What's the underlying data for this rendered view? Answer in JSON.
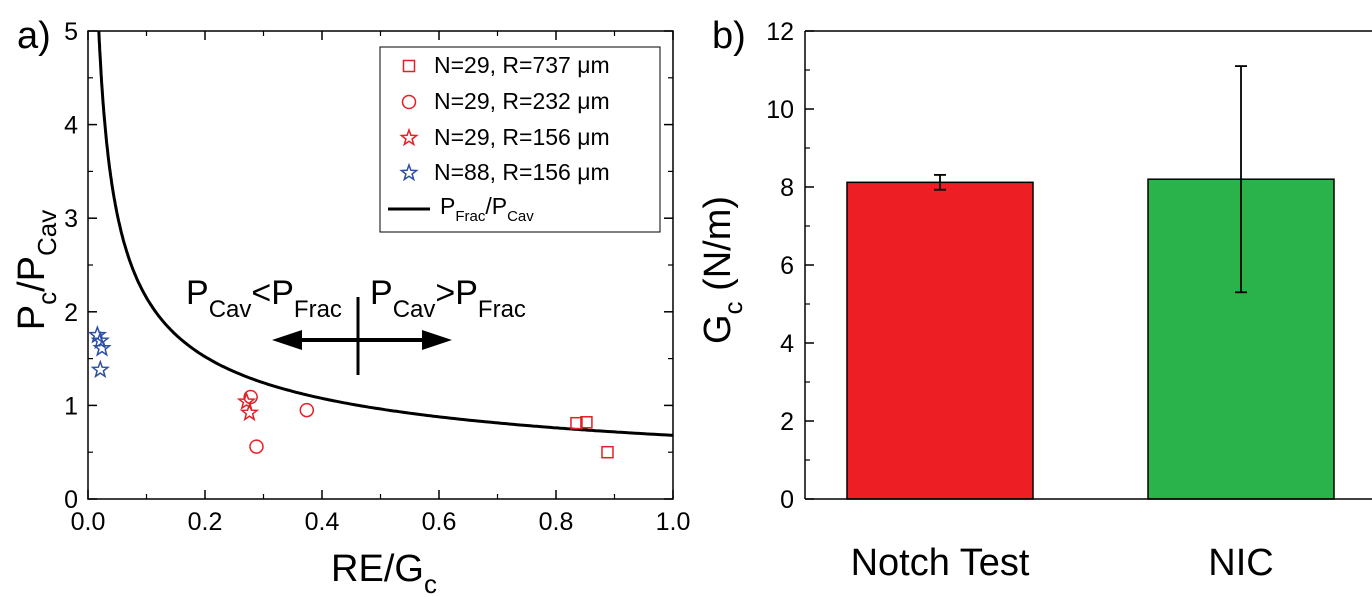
{
  "figure": {
    "panel_a_label": "a)",
    "panel_b_label": "b)"
  },
  "chart_data": [
    {
      "type": "scatter",
      "panel": "a",
      "xlabel": {
        "main": "RE/G",
        "sub": "c"
      },
      "ylabel": {
        "p1": "P",
        "s1": "c",
        "mid": "/P",
        "s2": "Cav"
      },
      "xlim": [
        0,
        1.0
      ],
      "ylim": [
        0,
        5
      ],
      "xticks": [
        "0.0",
        "0.2",
        "0.4",
        "0.6",
        "0.8",
        "1.0"
      ],
      "yticks": [
        "0",
        "1",
        "2",
        "3",
        "4",
        "5"
      ],
      "legend_position": "top-right",
      "annotation": {
        "left_text": {
          "p1": "P",
          "s1": "Cav",
          "op": "<P",
          "s2": "Frac"
        },
        "right_text": {
          "p1": "P",
          "s1": "Cav",
          "op": ">P",
          "s2": "Frac"
        }
      },
      "series": [
        {
          "name": "N=29, R=737 μm",
          "marker": "square",
          "color": "#e41f26",
          "points": [
            [
              0.835,
              0.81
            ],
            [
              0.852,
              0.82
            ],
            [
              0.888,
              0.5
            ]
          ]
        },
        {
          "name": "N=29, R=232 μm",
          "marker": "circle",
          "color": "#e41f26",
          "points": [
            [
              0.278,
              1.09
            ],
            [
              0.288,
              0.56
            ],
            [
              0.374,
              0.95
            ]
          ]
        },
        {
          "name": "N=29, R=156 μm",
          "marker": "star",
          "color": "#e41f26",
          "points": [
            [
              0.271,
              1.04
            ],
            [
              0.276,
              0.92
            ]
          ]
        },
        {
          "name": "N=88, R=156 μm",
          "marker": "star",
          "color": "#2d4fa3",
          "points": [
            [
              0.016,
              1.75
            ],
            [
              0.021,
              1.69
            ],
            [
              0.024,
              1.61
            ],
            [
              0.021,
              1.38
            ]
          ]
        },
        {
          "name_parts": {
            "p1": "P",
            "s1": "Frac",
            "mid": "/P",
            "s2": "Cav"
          },
          "type": "line",
          "color": "#000000",
          "function": "Pfrac/Pcav = 0.68 / sqrt(x)",
          "x_range": [
            0.0185,
            1.0
          ]
        }
      ]
    },
    {
      "type": "bar",
      "panel": "b",
      "ylabel": {
        "main": "G",
        "sub": "c",
        "unit": " (N/m)"
      },
      "ylim": [
        0,
        12
      ],
      "yticks": [
        "0",
        "2",
        "4",
        "6",
        "8",
        "10",
        "12"
      ],
      "categories": [
        "Notch Test",
        "NIC"
      ],
      "values": [
        8.12,
        8.2
      ],
      "error_low": [
        7.93,
        5.3
      ],
      "error_high": [
        8.31,
        11.1
      ],
      "colors": [
        "#ed1f24",
        "#2ab34a"
      ]
    }
  ]
}
